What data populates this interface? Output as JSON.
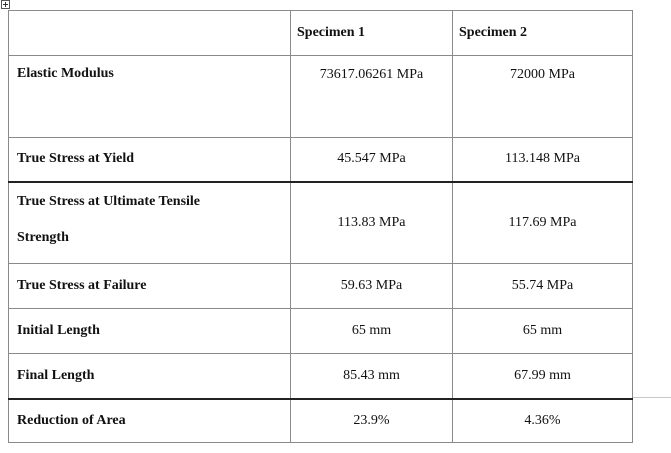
{
  "table": {
    "headers": [
      "",
      "Specimen 1",
      "Specimen 2"
    ],
    "rows": [
      {
        "property": "Elastic Modulus",
        "specimen1": "73617.06261 MPa",
        "specimen2": "72000 MPa"
      },
      {
        "property": "True Stress at Yield",
        "specimen1": "45.547 MPa",
        "specimen2": "113.148 MPa"
      },
      {
        "property_line1": "True Stress at Ultimate Tensile",
        "property_line2": "Strength",
        "specimen1": "113.83 MPa",
        "specimen2": "117.69 MPa"
      },
      {
        "property": "True Stress at Failure",
        "specimen1": "59.63 MPa",
        "specimen2": "55.74 MPa"
      },
      {
        "property": "Initial Length",
        "specimen1": "65 mm",
        "specimen2": "65 mm"
      },
      {
        "property": "Final Length",
        "specimen1": "85.43 mm",
        "specimen2": "67.99 mm"
      },
      {
        "property": "Reduction of Area",
        "specimen1": "23.9%",
        "specimen2": "4.36%"
      }
    ]
  }
}
